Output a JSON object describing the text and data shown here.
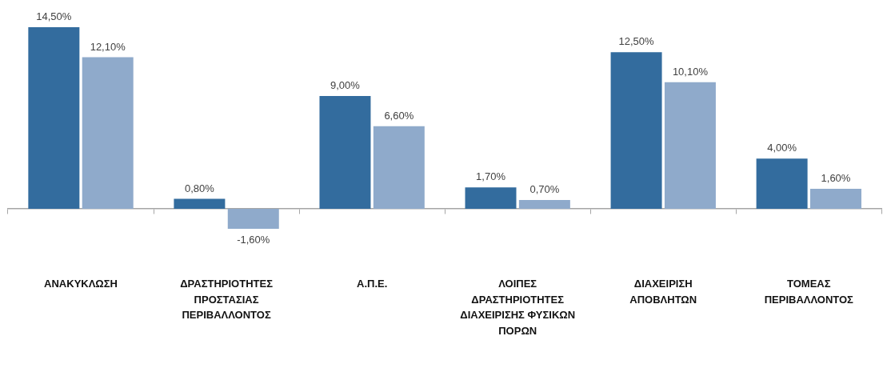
{
  "chart_data": {
    "type": "bar",
    "categories": [
      "ΑΝΑΚΥΚΛΩΣΗ",
      "ΔΡΑΣΤΗΡΙΟΤΗΤΕΣ ΠΡΟΣΤΑΣΙΑΣ ΠΕΡΙΒΑΛΛΟΝΤΟΣ",
      "Α.Π.Ε.",
      "ΛΟΙΠΕΣ ΔΡΑΣΤΗΡΙΟΤΗΤΕΣ ΔΙΑΧΕΙΡΙΣΗΣ ΦΥΣΙΚΩΝ ΠΟΡΩΝ",
      "ΔΙΑΧΕΙΡΙΣΗ ΑΠΟΒΛΗΤΩΝ",
      "ΤΟΜΕΑΣ ΠΕΡΙΒΑΛΛΟΝΤΟΣ"
    ],
    "series": [
      {
        "color": "#336c9e",
        "values": [
          14.5,
          0.8,
          9.0,
          1.7,
          12.5,
          4.0
        ],
        "value_labels": [
          "14,50%",
          "0,80%",
          "9,00%",
          "1,70%",
          "12,50%",
          "4,00%"
        ]
      },
      {
        "color": "#8faacb",
        "values": [
          12.1,
          -1.6,
          6.6,
          0.7,
          10.1,
          1.6
        ],
        "value_labels": [
          "12,10%",
          "-1,60%",
          "6,60%",
          "0,70%",
          "10,10%",
          "1,60%"
        ]
      }
    ]
  }
}
